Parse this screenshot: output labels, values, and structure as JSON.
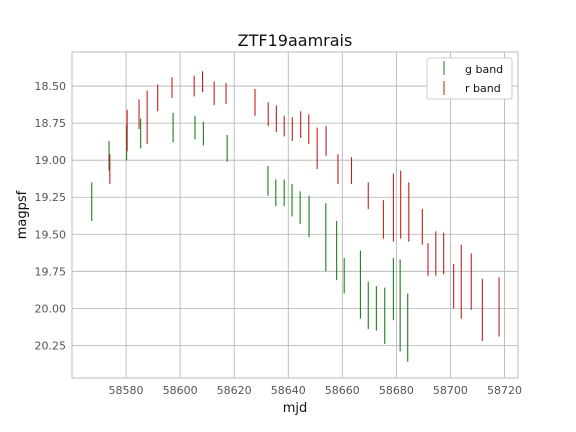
{
  "chart_data": {
    "type": "scatter",
    "title": "ZTF19aamrais",
    "xlabel": "mjd",
    "ylabel": "magpsf",
    "xlim": [
      58560,
      58725
    ],
    "ylim": [
      20.47,
      18.27
    ],
    "y_inverted": true,
    "grid": true,
    "legend_position": "top-right",
    "x_ticks": [
      58580,
      58600,
      58620,
      58640,
      58660,
      58680,
      58700,
      58720
    ],
    "y_ticks": [
      18.5,
      18.75,
      19.0,
      19.25,
      19.5,
      19.75,
      20.0,
      20.25
    ],
    "y_tick_labels": [
      "18.50",
      "18.75",
      "19.00",
      "19.25",
      "19.50",
      "19.75",
      "20.00",
      "20.25"
    ],
    "series": [
      {
        "name": "g band",
        "color": "#1a7f1a",
        "points": [
          {
            "x": 58567.3,
            "y": 19.28,
            "err": 0.13
          },
          {
            "x": 58573.7,
            "y": 18.97,
            "err": 0.1
          },
          {
            "x": 58580.2,
            "y": 18.88,
            "err": 0.12
          },
          {
            "x": 58585.4,
            "y": 18.82,
            "err": 0.1
          },
          {
            "x": 58597.4,
            "y": 18.78,
            "err": 0.1
          },
          {
            "x": 58605.5,
            "y": 18.78,
            "err": 0.08
          },
          {
            "x": 58608.6,
            "y": 18.82,
            "err": 0.08
          },
          {
            "x": 58617.4,
            "y": 18.92,
            "err": 0.09
          },
          {
            "x": 58632.5,
            "y": 19.14,
            "err": 0.1
          },
          {
            "x": 58635.4,
            "y": 19.22,
            "err": 0.09
          },
          {
            "x": 58638.5,
            "y": 19.22,
            "err": 0.09
          },
          {
            "x": 58641.4,
            "y": 19.27,
            "err": 0.11
          },
          {
            "x": 58644.4,
            "y": 19.32,
            "err": 0.11
          },
          {
            "x": 58647.7,
            "y": 19.38,
            "err": 0.14
          },
          {
            "x": 58653.9,
            "y": 19.52,
            "err": 0.23
          },
          {
            "x": 58657.9,
            "y": 19.61,
            "err": 0.2
          },
          {
            "x": 58660.7,
            "y": 19.78,
            "err": 0.12
          },
          {
            "x": 58666.7,
            "y": 19.84,
            "err": 0.23
          },
          {
            "x": 58669.6,
            "y": 19.98,
            "err": 0.16
          },
          {
            "x": 58672.6,
            "y": 20.0,
            "err": 0.15
          },
          {
            "x": 58675.7,
            "y": 20.05,
            "err": 0.19
          },
          {
            "x": 58678.9,
            "y": 19.87,
            "err": 0.21
          },
          {
            "x": 58681.4,
            "y": 19.98,
            "err": 0.31
          },
          {
            "x": 58684.2,
            "y": 20.13,
            "err": 0.23
          }
        ]
      },
      {
        "name": "r band",
        "color": "#c0201b",
        "points": [
          {
            "x": 58574.0,
            "y": 19.06,
            "err": 0.1
          },
          {
            "x": 58580.4,
            "y": 18.8,
            "err": 0.14
          },
          {
            "x": 58584.8,
            "y": 18.69,
            "err": 0.1
          },
          {
            "x": 58587.8,
            "y": 18.71,
            "err": 0.18
          },
          {
            "x": 58591.7,
            "y": 18.58,
            "err": 0.09
          },
          {
            "x": 58597.0,
            "y": 18.51,
            "err": 0.07
          },
          {
            "x": 58605.2,
            "y": 18.5,
            "err": 0.07
          },
          {
            "x": 58608.3,
            "y": 18.47,
            "err": 0.07
          },
          {
            "x": 58612.6,
            "y": 18.55,
            "err": 0.08
          },
          {
            "x": 58617.0,
            "y": 18.55,
            "err": 0.07
          },
          {
            "x": 58627.7,
            "y": 18.61,
            "err": 0.09
          },
          {
            "x": 58632.6,
            "y": 18.69,
            "err": 0.08
          },
          {
            "x": 58635.6,
            "y": 18.72,
            "err": 0.09
          },
          {
            "x": 58638.5,
            "y": 18.77,
            "err": 0.07
          },
          {
            "x": 58641.5,
            "y": 18.79,
            "err": 0.08
          },
          {
            "x": 58644.6,
            "y": 18.76,
            "err": 0.09
          },
          {
            "x": 58647.6,
            "y": 18.79,
            "err": 0.1
          },
          {
            "x": 58650.7,
            "y": 18.92,
            "err": 0.14
          },
          {
            "x": 58654.0,
            "y": 18.87,
            "err": 0.1
          },
          {
            "x": 58658.4,
            "y": 19.06,
            "err": 0.1
          },
          {
            "x": 58663.4,
            "y": 19.07,
            "err": 0.09
          },
          {
            "x": 58669.6,
            "y": 19.24,
            "err": 0.09
          },
          {
            "x": 58675.2,
            "y": 19.4,
            "err": 0.13
          },
          {
            "x": 58678.9,
            "y": 19.32,
            "err": 0.23
          },
          {
            "x": 58681.6,
            "y": 19.3,
            "err": 0.23
          },
          {
            "x": 58684.6,
            "y": 19.35,
            "err": 0.2
          },
          {
            "x": 58689.6,
            "y": 19.45,
            "err": 0.12
          },
          {
            "x": 58691.7,
            "y": 19.67,
            "err": 0.11
          },
          {
            "x": 58694.6,
            "y": 19.63,
            "err": 0.15
          },
          {
            "x": 58697.5,
            "y": 19.63,
            "err": 0.14
          },
          {
            "x": 58701.2,
            "y": 19.85,
            "err": 0.15
          },
          {
            "x": 58704.0,
            "y": 19.82,
            "err": 0.25
          },
          {
            "x": 58707.7,
            "y": 19.82,
            "err": 0.19
          },
          {
            "x": 58711.8,
            "y": 20.01,
            "err": 0.21
          },
          {
            "x": 58718.0,
            "y": 19.99,
            "err": 0.2
          }
        ]
      }
    ]
  }
}
